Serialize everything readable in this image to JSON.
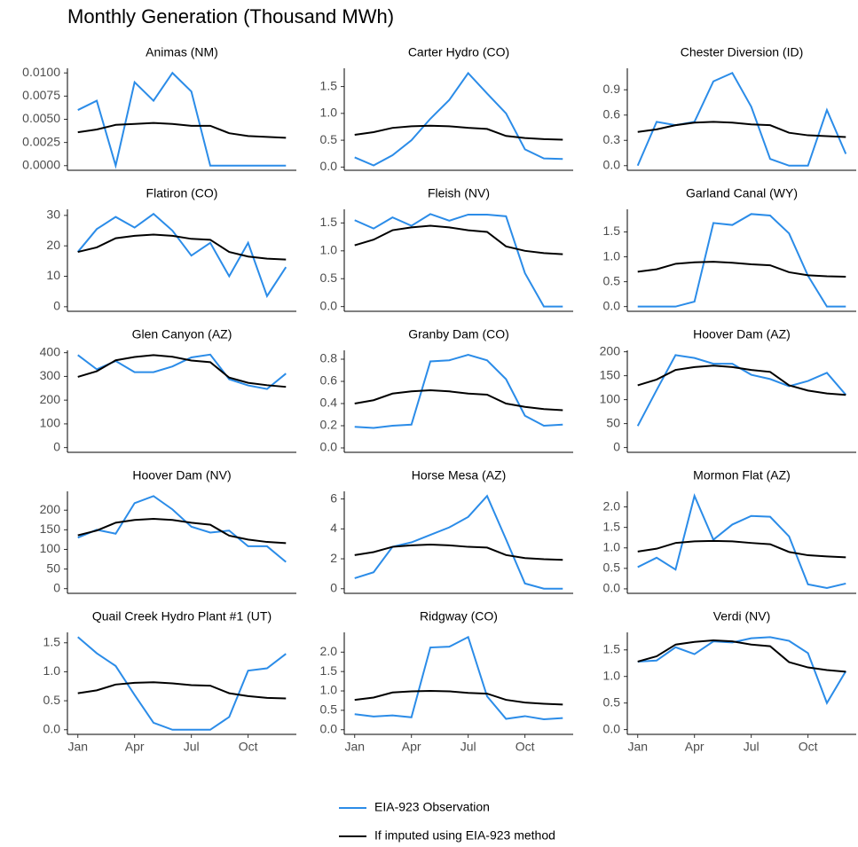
{
  "title": "Monthly Generation (Thousand MWh)",
  "categories": [
    "Jan",
    null,
    null,
    "Apr",
    null,
    null,
    "Jul",
    null,
    null,
    "Oct",
    null,
    null
  ],
  "legend": [
    {
      "name": "EIA-923 Observation",
      "color": "#2b8ce8"
    },
    {
      "name": "If imputed using EIA-923 method",
      "color": "#000000"
    }
  ],
  "chart_data": [
    {
      "type": "line",
      "title": "Animas (NM)",
      "ylim": [
        -0.0005,
        0.0105
      ],
      "yticks": [
        {
          "value": 0,
          "label": "0.0000"
        },
        {
          "value": 0.0025,
          "label": "0.0025"
        },
        {
          "value": 0.005,
          "label": "0.0050"
        },
        {
          "value": 0.0075,
          "label": "0.0075"
        },
        {
          "value": 0.01,
          "label": "0.0100"
        }
      ],
      "series": [
        {
          "values": [
            0.006,
            0.007,
            0,
            0.009,
            0.007,
            0.01,
            0.008,
            0,
            0,
            0,
            0,
            0
          ]
        },
        {
          "values": [
            0.0036,
            0.0039,
            0.0044,
            0.0045,
            0.0046,
            0.0045,
            0.0043,
            0.0043,
            0.0035,
            0.0032,
            0.0031,
            0.003
          ]
        }
      ]
    },
    {
      "type": "line",
      "title": "Carter Hydro (CO)",
      "ylim": [
        -0.06,
        1.84
      ],
      "yticks": [
        {
          "value": 0,
          "label": "0.0"
        },
        0.5,
        {
          "value": 1,
          "label": "1.0"
        },
        1.5
      ],
      "series": [
        {
          "values": [
            0.18,
            0.03,
            0.22,
            0.5,
            0.9,
            1.25,
            1.75,
            1.37,
            1.0,
            0.33,
            0.16,
            0.15
          ]
        },
        {
          "values": [
            0.6,
            0.65,
            0.73,
            0.76,
            0.77,
            0.76,
            0.73,
            0.71,
            0.58,
            0.54,
            0.52,
            0.51
          ]
        }
      ]
    },
    {
      "type": "line",
      "title": "Chester Diversion (ID)",
      "ylim": [
        -0.055,
        1.155
      ],
      "yticks": [
        {
          "value": 0,
          "label": "0.0"
        },
        0.3,
        0.6,
        0.9
      ],
      "series": [
        {
          "values": [
            0,
            0.52,
            0.48,
            0.52,
            1.0,
            1.1,
            0.7,
            0.08,
            0,
            0,
            0.66,
            0.14
          ]
        },
        {
          "values": [
            0.4,
            0.43,
            0.48,
            0.51,
            0.52,
            0.51,
            0.49,
            0.48,
            0.39,
            0.36,
            0.35,
            0.34
          ]
        }
      ]
    },
    {
      "type": "line",
      "title": "Flatiron (CO)",
      "ylim": [
        -1.5,
        32
      ],
      "yticks": [
        0,
        10,
        20,
        30
      ],
      "series": [
        {
          "values": [
            18,
            25.5,
            29.5,
            26,
            30.5,
            25,
            16.8,
            21,
            10,
            21,
            3.5,
            13
          ]
        },
        {
          "values": [
            18,
            19.5,
            22.5,
            23.3,
            23.7,
            23.3,
            22.3,
            22,
            18,
            16.5,
            15.8,
            15.5
          ]
        }
      ]
    },
    {
      "type": "line",
      "title": "Fleish (NV)",
      "ylim": [
        -0.085,
        1.745
      ],
      "yticks": [
        {
          "value": 0,
          "label": "0.0"
        },
        0.5,
        {
          "value": 1,
          "label": "1.0"
        },
        1.5
      ],
      "series": [
        {
          "values": [
            1.55,
            1.4,
            1.6,
            1.45,
            1.66,
            1.54,
            1.65,
            1.65,
            1.62,
            0.6,
            0,
            0
          ]
        },
        {
          "values": [
            1.1,
            1.2,
            1.37,
            1.42,
            1.45,
            1.42,
            1.37,
            1.34,
            1.08,
            1.0,
            0.96,
            0.94
          ]
        }
      ]
    },
    {
      "type": "line",
      "title": "Garland Canal (WY)",
      "ylim": [
        -0.095,
        1.955
      ],
      "yticks": [
        {
          "value": 0,
          "label": "0.0"
        },
        0.5,
        {
          "value": 1,
          "label": "1.0"
        },
        1.5
      ],
      "series": [
        {
          "values": [
            0,
            0,
            0,
            0.1,
            1.68,
            1.64,
            1.86,
            1.83,
            1.47,
            0.62,
            0,
            0
          ]
        },
        {
          "values": [
            0.7,
            0.75,
            0.86,
            0.89,
            0.9,
            0.88,
            0.85,
            0.83,
            0.69,
            0.63,
            0.61,
            0.6
          ]
        }
      ]
    },
    {
      "type": "line",
      "title": "Glen Canyon (AZ)",
      "ylim": [
        -20,
        410
      ],
      "yticks": [
        0,
        100,
        200,
        300,
        400
      ],
      "series": [
        {
          "values": [
            390,
            330,
            365,
            318,
            318,
            342,
            380,
            392,
            288,
            262,
            247,
            312
          ]
        },
        {
          "values": [
            298,
            322,
            368,
            382,
            390,
            383,
            367,
            360,
            295,
            273,
            263,
            256
          ]
        }
      ]
    },
    {
      "type": "line",
      "title": "Granby Dam (CO)",
      "ylim": [
        -0.04,
        0.88
      ],
      "yticks": [
        {
          "value": 0,
          "label": "0.0"
        },
        0.2,
        0.4,
        0.6,
        0.8
      ],
      "series": [
        {
          "values": [
            0.19,
            0.18,
            0.2,
            0.21,
            0.78,
            0.79,
            0.84,
            0.79,
            0.62,
            0.29,
            0.2,
            0.21
          ]
        },
        {
          "values": [
            0.4,
            0.43,
            0.49,
            0.51,
            0.52,
            0.51,
            0.49,
            0.48,
            0.4,
            0.37,
            0.35,
            0.34
          ]
        }
      ]
    },
    {
      "type": "line",
      "title": "Hoover Dam (AZ)",
      "ylim": [
        -10,
        203
      ],
      "yticks": [
        0,
        50,
        100,
        150,
        200
      ],
      "series": [
        {
          "values": [
            45,
            120,
            193,
            187,
            175,
            175,
            152,
            143,
            128,
            139,
            156,
            110
          ]
        },
        {
          "values": [
            130,
            142,
            162,
            168,
            171,
            168,
            162,
            158,
            130,
            119,
            113,
            110
          ]
        }
      ]
    },
    {
      "type": "line",
      "title": "Hoover Dam (NV)",
      "ylim": [
        -12,
        248
      ],
      "yticks": [
        0,
        50,
        100,
        150,
        200
      ],
      "series": [
        {
          "values": [
            130,
            150,
            140,
            218,
            236,
            202,
            158,
            143,
            148,
            108,
            108,
            68
          ]
        },
        {
          "values": [
            136,
            148,
            168,
            175,
            178,
            175,
            168,
            163,
            135,
            125,
            119,
            116
          ]
        }
      ]
    },
    {
      "type": "line",
      "title": "Horse Mesa (AZ)",
      "ylim": [
        -0.31,
        6.51
      ],
      "yticks": [
        0,
        2,
        4,
        6
      ],
      "series": [
        {
          "values": [
            0.7,
            1.1,
            2.8,
            3.1,
            3.6,
            4.1,
            4.8,
            6.2,
            3.3,
            0.35,
            0,
            0
          ]
        },
        {
          "values": [
            2.25,
            2.45,
            2.8,
            2.9,
            2.95,
            2.9,
            2.8,
            2.75,
            2.25,
            2.05,
            1.97,
            1.93
          ]
        }
      ]
    },
    {
      "type": "line",
      "title": "Mormon Flat (AZ)",
      "ylim": [
        -0.11,
        2.38
      ],
      "yticks": [
        {
          "value": 0,
          "label": "0.0"
        },
        0.5,
        {
          "value": 1,
          "label": "1.0"
        },
        1.5,
        {
          "value": 2,
          "label": "2.0"
        }
      ],
      "series": [
        {
          "values": [
            0.53,
            0.76,
            0.47,
            2.27,
            1.2,
            1.57,
            1.78,
            1.76,
            1.28,
            0.11,
            0.02,
            0.13
          ]
        },
        {
          "values": [
            0.91,
            0.98,
            1.12,
            1.16,
            1.17,
            1.16,
            1.12,
            1.09,
            0.9,
            0.82,
            0.79,
            0.77
          ]
        }
      ]
    },
    {
      "type": "line",
      "title": "Quail Creek Hydro Plant #1 (UT)",
      "ylim": [
        -0.08,
        1.68
      ],
      "yticks": [
        {
          "value": 0,
          "label": "0.0"
        },
        0.5,
        {
          "value": 1,
          "label": "1.0"
        },
        1.5
      ],
      "series": [
        {
          "values": [
            1.6,
            1.32,
            1.1,
            0.6,
            0.12,
            0,
            0,
            0,
            0.22,
            1.02,
            1.06,
            1.31
          ]
        },
        {
          "values": [
            0.63,
            0.68,
            0.78,
            0.81,
            0.82,
            0.8,
            0.77,
            0.76,
            0.63,
            0.58,
            0.55,
            0.54
          ]
        }
      ]
    },
    {
      "type": "line",
      "title": "Ridgway (CO)",
      "ylim": [
        -0.12,
        2.51
      ],
      "yticks": [
        {
          "value": 0,
          "label": "0.0"
        },
        0.5,
        {
          "value": 1,
          "label": "1.0"
        },
        1.5,
        {
          "value": 2,
          "label": "2.0"
        }
      ],
      "series": [
        {
          "values": [
            0.4,
            0.34,
            0.37,
            0.32,
            2.12,
            2.14,
            2.39,
            0.86,
            0.28,
            0.35,
            0.27,
            0.3
          ]
        },
        {
          "values": [
            0.77,
            0.83,
            0.96,
            0.99,
            1.0,
            0.99,
            0.95,
            0.93,
            0.77,
            0.7,
            0.67,
            0.65
          ]
        }
      ]
    },
    {
      "type": "line",
      "title": "Verdi (NV)",
      "ylim": [
        -0.09,
        1.83
      ],
      "yticks": [
        {
          "value": 0,
          "label": "0.0"
        },
        0.5,
        {
          "value": 1,
          "label": "1.0"
        },
        1.5
      ],
      "series": [
        {
          "values": [
            1.28,
            1.3,
            1.55,
            1.42,
            1.66,
            1.64,
            1.72,
            1.74,
            1.67,
            1.44,
            0.5,
            1.1
          ]
        },
        {
          "values": [
            1.28,
            1.38,
            1.6,
            1.65,
            1.68,
            1.66,
            1.6,
            1.57,
            1.27,
            1.17,
            1.12,
            1.09
          ]
        }
      ]
    }
  ]
}
